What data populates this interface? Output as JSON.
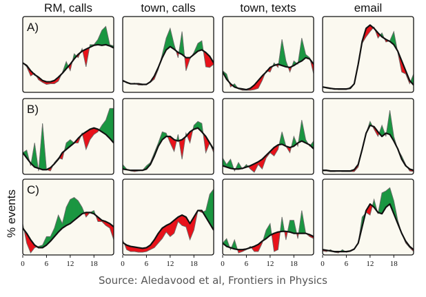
{
  "chart_data": {
    "type": "area",
    "column_titles": [
      "RM, calls",
      "town, calls",
      "town, texts",
      "email"
    ],
    "row_labels": [
      "A)",
      "B)",
      "C)"
    ],
    "ylabel": "% events",
    "x_ticks": [
      "0",
      "6",
      "12",
      "18"
    ],
    "colors": {
      "above": "#1a9641",
      "below": "#e8121a",
      "background": "#fbf9f0",
      "line": "#111111"
    },
    "x": [
      0,
      1,
      2,
      3,
      4,
      5,
      6,
      7,
      8,
      9,
      10,
      11,
      12,
      13,
      14,
      15,
      16,
      17,
      18,
      19,
      20,
      21,
      22,
      23
    ],
    "panels": [
      {
        "row": "A)",
        "column": "RM, calls",
        "baseline": [
          0.42,
          0.38,
          0.3,
          0.24,
          0.2,
          0.15,
          0.13,
          0.13,
          0.15,
          0.2,
          0.26,
          0.33,
          0.4,
          0.48,
          0.55,
          0.6,
          0.63,
          0.66,
          0.69,
          0.7,
          0.69,
          0.7,
          0.68,
          0.65
        ],
        "values": [
          0.42,
          0.36,
          0.22,
          0.26,
          0.16,
          0.12,
          0.09,
          0.1,
          0.1,
          0.14,
          0.27,
          0.44,
          0.3,
          0.56,
          0.5,
          0.64,
          0.36,
          0.7,
          0.7,
          0.78,
          0.92,
          0.98,
          0.7,
          0.68
        ]
      },
      {
        "row": "A)",
        "column": "town, calls",
        "baseline": [
          0.15,
          0.12,
          0.1,
          0.1,
          0.1,
          0.09,
          0.09,
          0.13,
          0.22,
          0.35,
          0.5,
          0.62,
          0.67,
          0.63,
          0.58,
          0.55,
          0.5,
          0.5,
          0.55,
          0.6,
          0.62,
          0.58,
          0.52,
          0.42
        ],
        "values": [
          0.13,
          0.13,
          0.1,
          0.11,
          0.08,
          0.08,
          0.1,
          0.12,
          0.17,
          0.32,
          0.55,
          0.8,
          0.95,
          0.7,
          0.5,
          0.9,
          0.3,
          0.48,
          0.58,
          0.72,
          0.76,
          0.36,
          0.35,
          0.4
        ]
      },
      {
        "row": "A)",
        "column": "town, texts",
        "baseline": [
          0.28,
          0.17,
          0.1,
          0.05,
          0.03,
          0.02,
          0.01,
          0.03,
          0.08,
          0.15,
          0.22,
          0.28,
          0.35,
          0.38,
          0.4,
          0.38,
          0.36,
          0.35,
          0.38,
          0.42,
          0.45,
          0.5,
          0.48,
          0.4
        ],
        "values": [
          0.3,
          0.25,
          0.05,
          0.1,
          0.02,
          0.0,
          0.0,
          0.0,
          0.01,
          0.03,
          0.15,
          0.3,
          0.28,
          0.42,
          0.35,
          0.78,
          0.45,
          0.28,
          0.45,
          0.4,
          0.8,
          0.55,
          0.5,
          0.25
        ]
      },
      {
        "row": "A)",
        "column": "email",
        "baseline": [
          0.05,
          0.04,
          0.03,
          0.02,
          0.02,
          0.02,
          0.02,
          0.03,
          0.1,
          0.4,
          0.75,
          0.95,
          1.0,
          0.95,
          0.88,
          0.82,
          0.78,
          0.75,
          0.7,
          0.6,
          0.45,
          0.3,
          0.15,
          0.08
        ],
        "values": [
          0.05,
          0.03,
          0.02,
          0.03,
          0.01,
          0.01,
          0.01,
          0.05,
          0.1,
          0.38,
          0.72,
          0.82,
          0.9,
          0.97,
          0.8,
          0.88,
          0.74,
          0.76,
          0.9,
          0.58,
          0.28,
          0.25,
          0.1,
          0.25
        ]
      },
      {
        "row": "B)",
        "column": "RM, calls",
        "baseline": [
          0.3,
          0.22,
          0.14,
          0.08,
          0.06,
          0.04,
          0.04,
          0.07,
          0.13,
          0.2,
          0.3,
          0.35,
          0.4,
          0.45,
          0.52,
          0.58,
          0.62,
          0.66,
          0.68,
          0.66,
          0.62,
          0.58,
          0.52,
          0.45
        ],
        "values": [
          0.3,
          0.34,
          0.1,
          0.45,
          0.02,
          0.75,
          0.04,
          0.02,
          0.15,
          0.22,
          0.2,
          0.45,
          0.5,
          0.45,
          0.45,
          0.6,
          0.35,
          0.5,
          0.58,
          0.62,
          0.72,
          0.8,
          0.98,
          0.98
        ]
      },
      {
        "row": "B)",
        "column": "town, calls",
        "baseline": [
          0.05,
          0.04,
          0.03,
          0.03,
          0.03,
          0.03,
          0.05,
          0.12,
          0.25,
          0.4,
          0.5,
          0.55,
          0.55,
          0.5,
          0.48,
          0.5,
          0.55,
          0.62,
          0.66,
          0.68,
          0.62,
          0.55,
          0.45,
          0.35
        ],
        "values": [
          0.12,
          0.05,
          0.02,
          0.01,
          0.02,
          0.03,
          0.1,
          0.15,
          0.3,
          0.45,
          0.62,
          0.6,
          0.45,
          0.32,
          0.58,
          0.2,
          0.6,
          0.45,
          0.72,
          0.78,
          0.75,
          0.3,
          0.45,
          0.3
        ]
      },
      {
        "row": "B)",
        "column": "town, texts",
        "baseline": [
          0.1,
          0.08,
          0.06,
          0.05,
          0.05,
          0.06,
          0.08,
          0.1,
          0.13,
          0.16,
          0.2,
          0.26,
          0.32,
          0.38,
          0.42,
          0.43,
          0.4,
          0.38,
          0.4,
          0.45,
          0.48,
          0.45,
          0.42,
          0.36
        ],
        "values": [
          0.22,
          0.12,
          0.2,
          0.02,
          0.15,
          0.05,
          0.12,
          0.05,
          0.0,
          0.12,
          0.05,
          0.22,
          0.3,
          0.25,
          0.35,
          0.62,
          0.4,
          0.3,
          0.55,
          0.4,
          0.8,
          0.5,
          0.4,
          0.48
        ]
      },
      {
        "row": "B)",
        "column": "email",
        "baseline": [
          0.03,
          0.03,
          0.02,
          0.02,
          0.02,
          0.02,
          0.02,
          0.02,
          0.04,
          0.12,
          0.35,
          0.6,
          0.72,
          0.7,
          0.62,
          0.55,
          0.6,
          0.58,
          0.48,
          0.36,
          0.2,
          0.1,
          0.05,
          0.03
        ],
        "values": [
          0.02,
          0.02,
          0.01,
          0.01,
          0.02,
          0.01,
          0.01,
          0.01,
          0.01,
          0.08,
          0.36,
          0.6,
          0.78,
          0.66,
          0.55,
          0.72,
          0.55,
          0.95,
          0.55,
          0.35,
          0.25,
          0.12,
          0.02,
          0.01
        ]
      },
      {
        "row": "C)",
        "column": "RM, calls",
        "baseline": [
          0.38,
          0.3,
          0.2,
          0.12,
          0.08,
          0.08,
          0.12,
          0.18,
          0.25,
          0.32,
          0.38,
          0.42,
          0.45,
          0.5,
          0.55,
          0.6,
          0.62,
          0.62,
          0.6,
          0.55,
          0.5,
          0.48,
          0.45,
          0.4
        ],
        "values": [
          0.45,
          0.15,
          0.0,
          0.08,
          0.1,
          0.12,
          0.25,
          0.25,
          0.38,
          0.58,
          0.45,
          0.7,
          0.82,
          0.85,
          0.8,
          0.7,
          0.55,
          0.62,
          0.65,
          0.48,
          0.48,
          0.42,
          0.38,
          0.2
        ]
      },
      {
        "row": "C)",
        "column": "town, calls",
        "baseline": [
          0.16,
          0.12,
          0.1,
          0.09,
          0.08,
          0.07,
          0.08,
          0.12,
          0.2,
          0.3,
          0.38,
          0.42,
          0.45,
          0.5,
          0.55,
          0.58,
          0.55,
          0.45,
          0.55,
          0.65,
          0.65,
          0.55,
          0.45,
          0.35
        ],
        "values": [
          0.2,
          0.05,
          0.02,
          0.02,
          0.01,
          0.01,
          0.02,
          0.05,
          0.08,
          0.15,
          0.22,
          0.32,
          0.25,
          0.3,
          0.48,
          0.42,
          0.4,
          0.2,
          0.35,
          0.65,
          0.62,
          0.65,
          0.9,
          0.98
        ]
      },
      {
        "row": "C)",
        "column": "town, texts",
        "baseline": [
          0.15,
          0.1,
          0.08,
          0.06,
          0.05,
          0.05,
          0.06,
          0.08,
          0.1,
          0.13,
          0.18,
          0.22,
          0.27,
          0.3,
          0.32,
          0.33,
          0.33,
          0.32,
          0.3,
          0.3,
          0.3,
          0.3,
          0.28,
          0.25
        ],
        "values": [
          0.15,
          0.22,
          0.05,
          0.2,
          0.0,
          0.02,
          0.05,
          0.1,
          0.02,
          0.02,
          0.15,
          0.35,
          0.45,
          0.02,
          0.05,
          0.55,
          0.2,
          0.5,
          0.5,
          0.22,
          0.65,
          0.3,
          0.25,
          0.22
        ]
      },
      {
        "row": "C)",
        "column": "email",
        "baseline": [
          0.05,
          0.04,
          0.03,
          0.02,
          0.02,
          0.02,
          0.02,
          0.03,
          0.06,
          0.15,
          0.4,
          0.65,
          0.75,
          0.7,
          0.62,
          0.6,
          0.7,
          0.75,
          0.6,
          0.45,
          0.3,
          0.18,
          0.1,
          0.05
        ],
        "values": [
          0.03,
          0.02,
          0.05,
          0.01,
          0.0,
          0.05,
          0.01,
          0.02,
          0.05,
          0.15,
          0.55,
          0.62,
          0.58,
          0.82,
          0.6,
          0.92,
          0.95,
          1.0,
          0.8,
          0.5,
          0.3,
          0.15,
          0.08,
          0.02
        ]
      }
    ]
  },
  "source": "Source: Aledavood et al, Frontiers in Physics"
}
